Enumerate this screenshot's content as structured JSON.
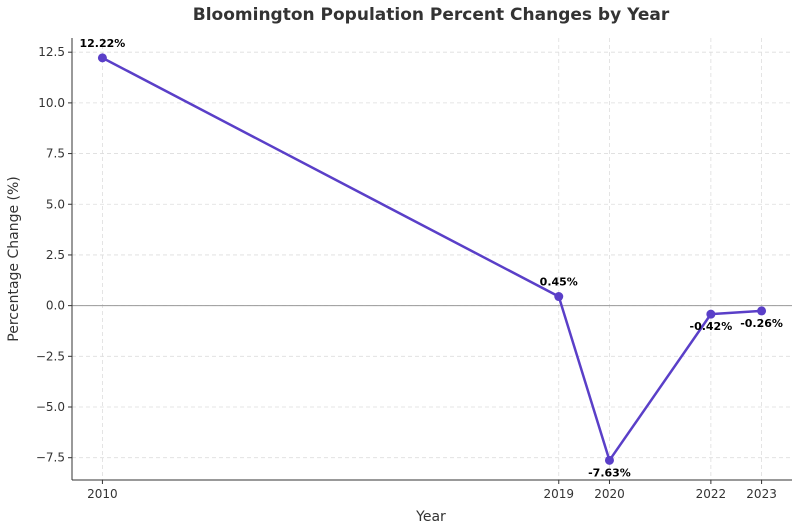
{
  "chart_data": {
    "type": "line",
    "title": "Bloomington Population Percent Changes by Year",
    "xlabel": "Year",
    "ylabel": "Percentage Change (%)",
    "x": [
      2010,
      2019,
      2020,
      2022,
      2023
    ],
    "series": [
      {
        "values": [
          12.22,
          0.45,
          -7.63,
          -0.42,
          -0.26
        ]
      }
    ],
    "data_labels": [
      "12.22%",
      "0.45%",
      "-7.63%",
      "-0.42%",
      "-0.26%"
    ],
    "x_ticks": [
      2010,
      2019,
      2020,
      2022,
      2023
    ],
    "y_ticks": [
      12.5,
      10.0,
      7.5,
      5.0,
      2.5,
      0.0,
      -2.5,
      -5.0,
      -7.5
    ],
    "y_tick_labels": [
      "12.5",
      "10.0",
      "7.5",
      "5.0",
      "2.5",
      "0.0",
      "−2.5",
      "−5.0",
      "−7.5"
    ],
    "xlim": [
      2009.4,
      2023.6
    ],
    "ylim": [
      -8.6,
      13.2
    ],
    "grid": true,
    "zero_line": true,
    "colors": {
      "line": "#5a3fc8",
      "grid": "#dddddd",
      "zero_line": "#999999",
      "axis": "#333333"
    }
  }
}
